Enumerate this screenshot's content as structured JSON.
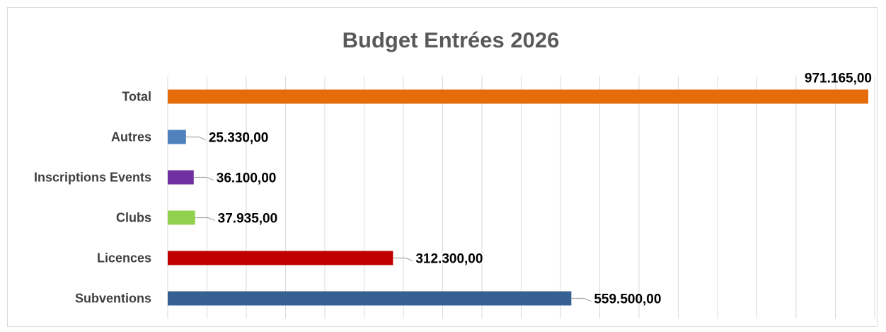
{
  "chart_data": {
    "type": "bar",
    "orientation": "horizontal",
    "title": "Budget Entrées 2026",
    "xlabel": "",
    "ylabel": "",
    "xlim": [
      0,
      980000
    ],
    "grid": true,
    "legend": "none",
    "categories": [
      "Total",
      "Autres",
      "Inscriptions Events",
      "Clubs",
      "Licences",
      "Subventions"
    ],
    "values": [
      971165,
      25330,
      36100,
      37935,
      312300,
      559500
    ],
    "value_labels": [
      "971.165,00",
      "25.330,00",
      "36.100,00",
      "37.935,00",
      "312.300,00",
      "559.500,00"
    ],
    "colors": [
      "#e46c0a",
      "#4f81bd",
      "#7030a0",
      "#92d050",
      "#c00000",
      "#376092"
    ]
  }
}
